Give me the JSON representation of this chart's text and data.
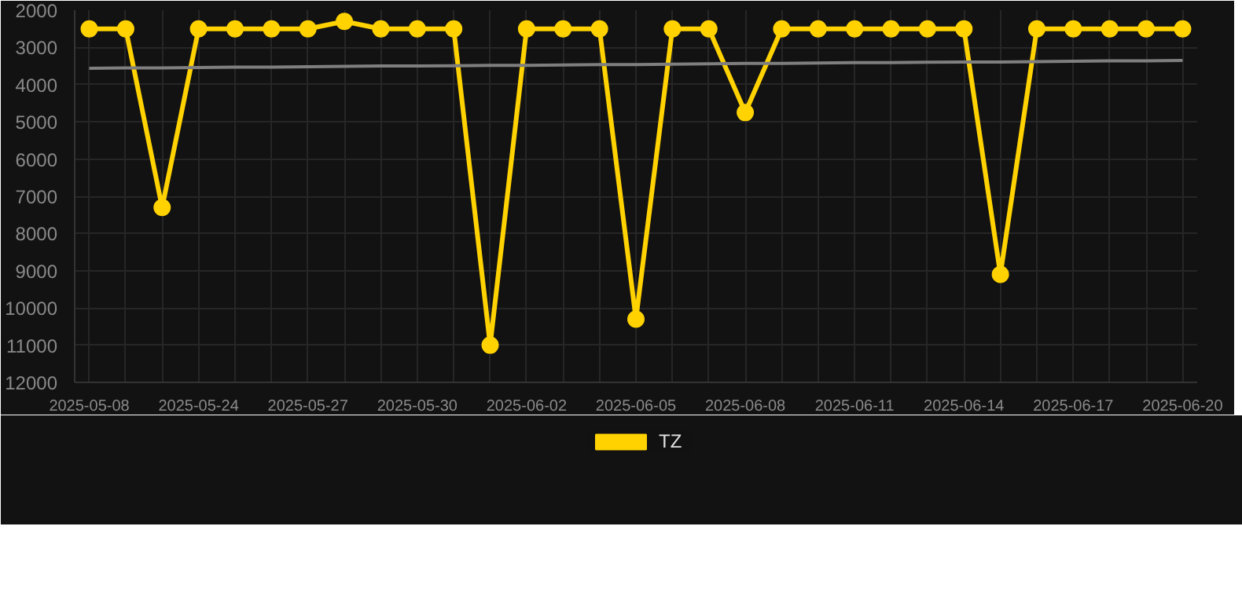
{
  "chart_data": {
    "type": "line",
    "categories": [
      "2025-05-08",
      null,
      null,
      "2025-05-24",
      null,
      null,
      "2025-05-27",
      null,
      null,
      "2025-05-30",
      null,
      null,
      "2025-06-02",
      null,
      null,
      "2025-06-05",
      null,
      null,
      "2025-06-08",
      null,
      null,
      "2025-06-11",
      null,
      null,
      "2025-06-14",
      null,
      null,
      "2025-06-17",
      null,
      null,
      "2025-06-20"
    ],
    "series": [
      {
        "name": "TZ",
        "color": "#ffd200",
        "marker": "circle",
        "values": [
          2500,
          2500,
          7300,
          2500,
          2500,
          2500,
          2500,
          2300,
          2500,
          2500,
          2500,
          11000,
          2500,
          2500,
          2500,
          10300,
          2500,
          2500,
          4750,
          2500,
          2500,
          2500,
          2500,
          2500,
          2500,
          9100,
          2500,
          2500,
          2500,
          2500,
          2500
        ]
      },
      {
        "type": "line",
        "color": "#7f7f7f",
        "marker": "none",
        "values": [
          3560,
          3550,
          3550,
          3540,
          3530,
          3530,
          3520,
          3510,
          3500,
          3500,
          3490,
          3480,
          3480,
          3470,
          3460,
          3460,
          3450,
          3440,
          3430,
          3430,
          3420,
          3410,
          3410,
          3400,
          3390,
          3390,
          3380,
          3370,
          3360,
          3360,
          3350
        ]
      }
    ],
    "ylim": [
      12000,
      2000
    ],
    "yticks": [
      2000,
      3000,
      4000,
      5000,
      6000,
      7000,
      8000,
      9000,
      10000,
      11000,
      12000
    ],
    "grid": true,
    "legend": "bottom"
  }
}
